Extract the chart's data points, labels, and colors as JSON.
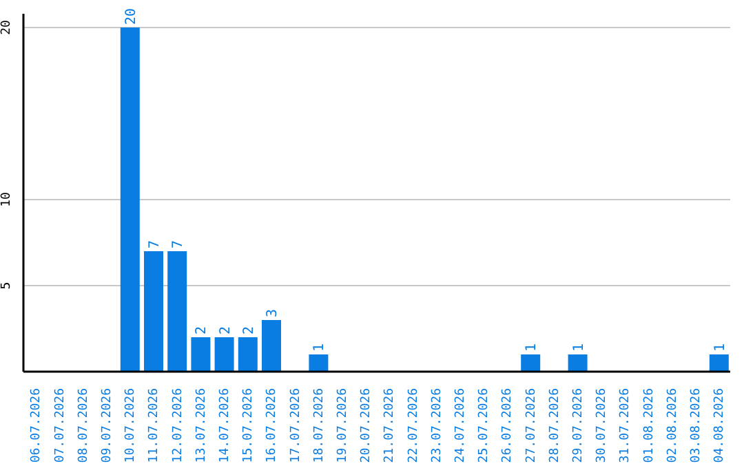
{
  "chart_data": {
    "type": "bar",
    "categories": [
      "06.07.2026",
      "07.07.2026",
      "08.07.2026",
      "09.07.2026",
      "10.07.2026",
      "11.07.2026",
      "12.07.2026",
      "13.07.2026",
      "14.07.2026",
      "15.07.2026",
      "16.07.2026",
      "17.07.2026",
      "18.07.2026",
      "19.07.2026",
      "20.07.2026",
      "21.07.2026",
      "22.07.2026",
      "23.07.2026",
      "24.07.2026",
      "25.07.2026",
      "26.07.2026",
      "27.07.2026",
      "28.07.2026",
      "29.07.2026",
      "30.07.2026",
      "31.07.2026",
      "01.08.2026",
      "02.08.2026",
      "03.08.2026",
      "04.08.2026"
    ],
    "values": [
      0,
      0,
      0,
      0,
      20,
      7,
      7,
      2,
      2,
      2,
      3,
      0,
      1,
      0,
      0,
      0,
      0,
      0,
      0,
      0,
      0,
      1,
      0,
      1,
      0,
      0,
      0,
      0,
      0,
      1
    ],
    "value_labels": [
      null,
      null,
      null,
      null,
      "20",
      "7",
      "7",
      "2",
      "2",
      "2",
      "3",
      null,
      "1",
      null,
      null,
      null,
      null,
      null,
      null,
      null,
      null,
      "1",
      null,
      "1",
      null,
      null,
      null,
      null,
      null,
      "1"
    ],
    "color": "#0a7de2",
    "ylim": [
      0,
      20.8
    ],
    "yticks": [
      5,
      10,
      20
    ],
    "grid": "y"
  }
}
